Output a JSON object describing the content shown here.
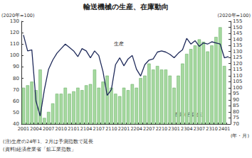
{
  "chart_data": {
    "type": "bar",
    "title": "輸送機械の生産、在庫動向",
    "y_label": "(2020年=100)",
    "y2_label": "(2020年=100)",
    "x_label": "(年・月)",
    "notes": [
      "(注)生産の24年1、2月は予測指数で延長",
      "(資料)経済産業省「鉱工業指数」"
    ],
    "categories": [
      "2001",
      null,
      null,
      "2004",
      null,
      null,
      "2007",
      null,
      null,
      "2010",
      null,
      null,
      "2101",
      null,
      null,
      "2104",
      null,
      null,
      "2107",
      null,
      null,
      "2110",
      null,
      null,
      "2201",
      null,
      null,
      "2204",
      null,
      null,
      "2207",
      null,
      null,
      "2210",
      null,
      null,
      "2301",
      null,
      null,
      "2304",
      null,
      null,
      "2307",
      null,
      null,
      "2310",
      null,
      null,
      "2401",
      null
    ],
    "series": [
      {
        "name": "生産",
        "type": "line",
        "color": "#1f2a5a",
        "line_style": "solid",
        "marker": "none",
        "values": [
          118,
          104,
          105,
          60,
          47,
          70,
          88,
          96,
          102,
          106,
          110,
          107,
          104,
          99,
          106,
          104,
          98,
          104,
          100,
          86,
          65,
          70,
          92,
          98,
          91,
          97,
          100,
          88,
          82,
          92,
          96,
          97,
          103,
          104,
          103,
          101,
          98,
          102,
          105,
          115,
          110,
          113,
          108,
          111,
          110,
          112,
          111,
          110,
          98,
          99
        ]
      },
      {
        "name": "在庫(右目盛)",
        "type": "bar",
        "color": "#a6d9a0",
        "axis": "y2",
        "values": [
          100,
          102,
          105,
          98,
          115,
          75,
          80,
          87,
          95,
          95,
          100,
          95,
          97,
          100,
          98,
          102,
          103,
          115,
          100,
          105,
          110,
          100,
          95,
          93,
          100,
          98,
          103,
          100,
          108,
          110,
          120,
          115,
          118,
          115,
          115,
          110,
          100,
          110,
          120,
          128,
          132,
          135,
          140,
          138,
          130,
          135,
          142,
          150,
          118,
          null
        ]
      }
    ],
    "ylim": [
      40,
      130
    ],
    "yticks": [
      40,
      50,
      60,
      70,
      80,
      90,
      100,
      110,
      120,
      130
    ],
    "y2lim": [
      70,
      155
    ],
    "y2ticks": [
      70,
      75,
      80,
      85,
      90,
      95,
      100,
      105,
      110,
      115,
      120,
      125,
      130,
      135,
      140,
      145,
      150,
      155
    ],
    "grid": false
  }
}
